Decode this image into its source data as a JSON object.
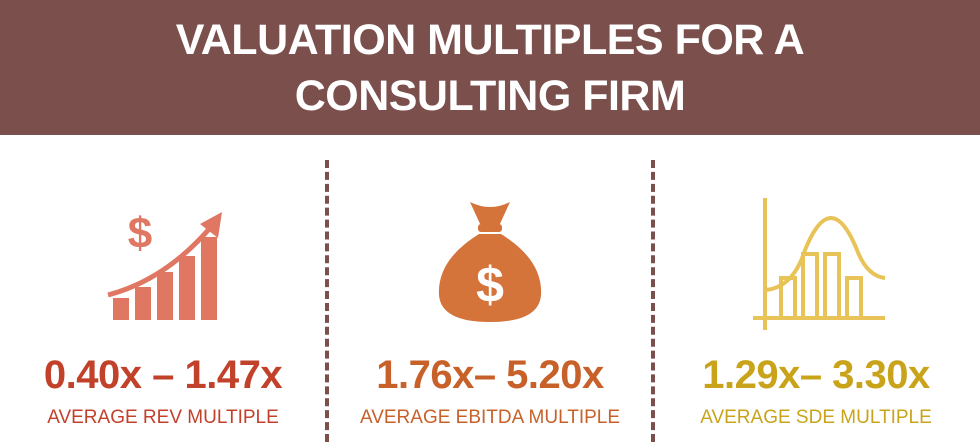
{
  "header": {
    "title": "VALUATION MULTIPLES FOR A CONSULTING FIRM"
  },
  "panels": [
    {
      "value": "0.40x – 1.47x",
      "label": "AVERAGE REV MULTIPLE"
    },
    {
      "value": "1.76x– 5.20x",
      "label": "AVERAGE EBITDA MULTIPLE"
    },
    {
      "value": "1.29x– 3.30x",
      "label": "AVERAGE SDE MULTIPLE"
    }
  ]
}
